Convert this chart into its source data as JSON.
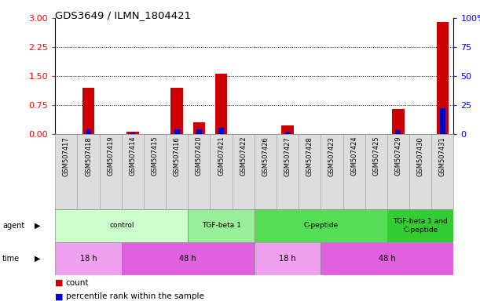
{
  "title": "GDS3649 / ILMN_1804421",
  "samples": [
    "GSM507417",
    "GSM507418",
    "GSM507419",
    "GSM507414",
    "GSM507415",
    "GSM507416",
    "GSM507420",
    "GSM507421",
    "GSM507422",
    "GSM507426",
    "GSM507427",
    "GSM507428",
    "GSM507423",
    "GSM507424",
    "GSM507425",
    "GSM507429",
    "GSM507430",
    "GSM507431"
  ],
  "count_values": [
    0.0,
    1.2,
    0.0,
    0.05,
    0.0,
    1.2,
    0.3,
    1.55,
    0.0,
    0.0,
    0.22,
    0.0,
    0.0,
    0.0,
    0.0,
    0.65,
    0.0,
    2.9
  ],
  "percentile_values_pct": [
    0,
    4,
    0,
    1,
    0,
    4,
    4,
    5,
    0,
    0,
    2,
    0,
    0,
    0,
    0,
    3,
    0,
    22
  ],
  "ylim_left": [
    0,
    3
  ],
  "ylim_right": [
    0,
    100
  ],
  "yticks_left": [
    0,
    0.75,
    1.5,
    2.25,
    3
  ],
  "yticks_right": [
    0,
    25,
    50,
    75,
    100
  ],
  "agent_groups": [
    {
      "label": "control",
      "start": 0,
      "end": 5,
      "color": "#ccffcc"
    },
    {
      "label": "TGF-beta 1",
      "start": 6,
      "end": 8,
      "color": "#99ee99"
    },
    {
      "label": "C-peptide",
      "start": 9,
      "end": 14,
      "color": "#55dd55"
    },
    {
      "label": "TGF-beta 1 and\nC-peptide",
      "start": 15,
      "end": 17,
      "color": "#33cc33"
    }
  ],
  "time_groups": [
    {
      "label": "18 h",
      "start": 0,
      "end": 2,
      "color": "#f0a0f0"
    },
    {
      "label": "48 h",
      "start": 3,
      "end": 8,
      "color": "#e060e0"
    },
    {
      "label": "18 h",
      "start": 9,
      "end": 11,
      "color": "#f0a0f0"
    },
    {
      "label": "48 h",
      "start": 12,
      "end": 17,
      "color": "#e060e0"
    }
  ],
  "count_color": "#cc0000",
  "percentile_color": "#0000cc",
  "bg_color": "#ffffff",
  "label_bg_color": "#dddddd"
}
